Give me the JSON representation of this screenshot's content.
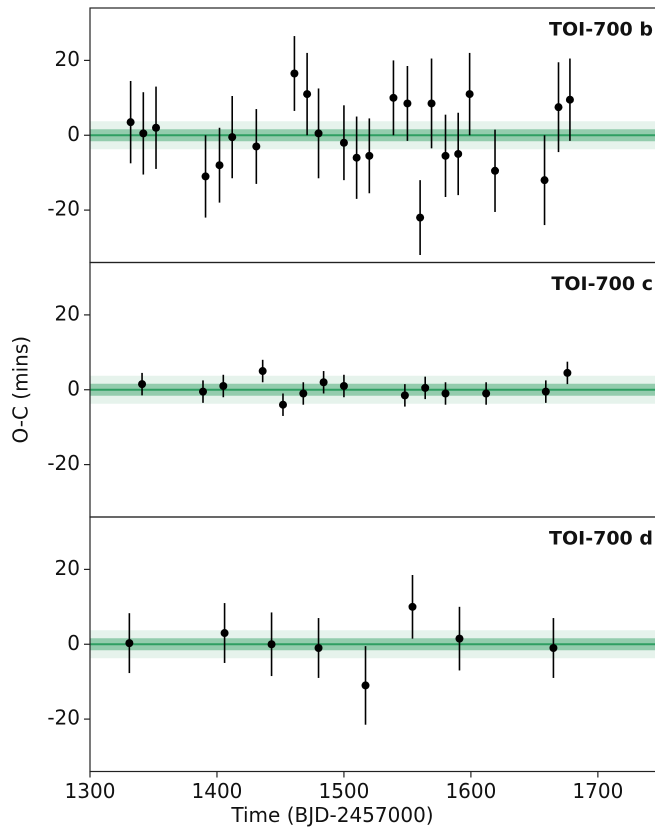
{
  "chart_data": [
    {
      "type": "scatter",
      "title": "TOI-700 b",
      "color": "#2e9e62",
      "x": [
        1332,
        1342,
        1352,
        1391,
        1402,
        1412,
        1431,
        1461,
        1471,
        1480,
        1500,
        1510,
        1520,
        1539,
        1550,
        1560,
        1569,
        1580,
        1590,
        1599,
        1619,
        1658,
        1669,
        1678
      ],
      "values": [
        3.5,
        0.5,
        2,
        -11,
        -8,
        -0.5,
        -3,
        16.5,
        11,
        0.5,
        -2,
        -6,
        -5.5,
        10,
        8.5,
        -22,
        8.5,
        -5.5,
        -5,
        11,
        -9.5,
        -12,
        7.5,
        9.5
      ],
      "errors": [
        11,
        11,
        11,
        11,
        10,
        11,
        10,
        10,
        11,
        12,
        10,
        11,
        10,
        10,
        10,
        10,
        12,
        11,
        11,
        11,
        11,
        12,
        12,
        11
      ],
      "xlim": [
        1300,
        1745
      ],
      "ylim": [
        -34,
        34
      ],
      "yticks": [
        -20,
        0,
        20
      ]
    },
    {
      "type": "scatter",
      "title": "TOI-700 c",
      "color": "#2e9e62",
      "y_label": "O-C (mins)",
      "x": [
        1341,
        1389,
        1405,
        1436,
        1452,
        1468,
        1484,
        1500,
        1548,
        1564,
        1580,
        1612,
        1659,
        1676
      ],
      "values": [
        1.5,
        -0.5,
        1,
        5,
        -4,
        -1,
        2,
        1,
        -1.5,
        0.5,
        -1,
        -1,
        -0.5,
        4.5
      ],
      "errors": [
        3,
        3,
        3,
        3,
        3,
        3,
        3,
        3,
        3,
        3,
        3,
        3,
        3,
        3
      ],
      "xlim": [
        1300,
        1745
      ],
      "ylim": [
        -34,
        34
      ],
      "yticks": [
        -20,
        0,
        20
      ]
    },
    {
      "type": "scatter",
      "title": "TOI-700 d",
      "color": "#2e9e62",
      "x_label": "Time (BJD-2457000)",
      "x": [
        1331,
        1406,
        1443,
        1480,
        1517,
        1554,
        1591,
        1665
      ],
      "values": [
        0.3,
        3,
        0,
        -1,
        -11,
        10,
        1.5,
        -1
      ],
      "errors": [
        8,
        8,
        8.5,
        8,
        10.5,
        8.5,
        8.5,
        8
      ],
      "xlim": [
        1300,
        1745
      ],
      "ylim": [
        -34,
        34
      ],
      "yticks": [
        -20,
        0,
        20
      ],
      "xticks": [
        1300,
        1400,
        1500,
        1600,
        1700
      ]
    }
  ]
}
